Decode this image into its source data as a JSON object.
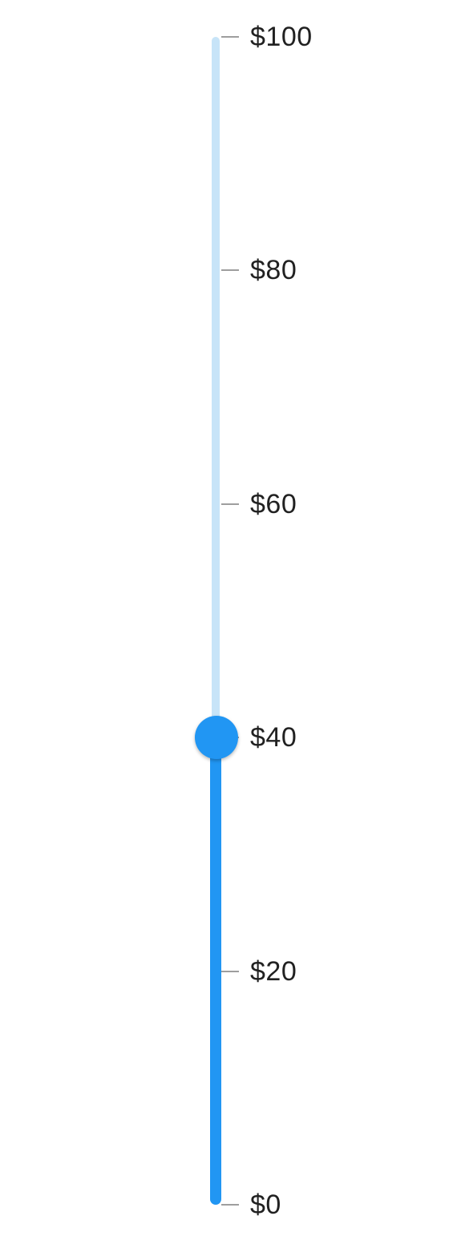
{
  "slider": {
    "min": 0,
    "max": 100,
    "value": 40,
    "orientation": "vertical",
    "tick_values": [
      100,
      80,
      60,
      40,
      20,
      0
    ],
    "tick_labels": [
      "$100",
      "$80",
      "$60",
      "$40",
      "$20",
      "$0"
    ]
  },
  "colors": {
    "active_track": "#2196f3",
    "inactive_track": "#c7e4f8",
    "thumb": "#2196f3",
    "tick": "#9e9e9e",
    "label_text": "#212121"
  }
}
